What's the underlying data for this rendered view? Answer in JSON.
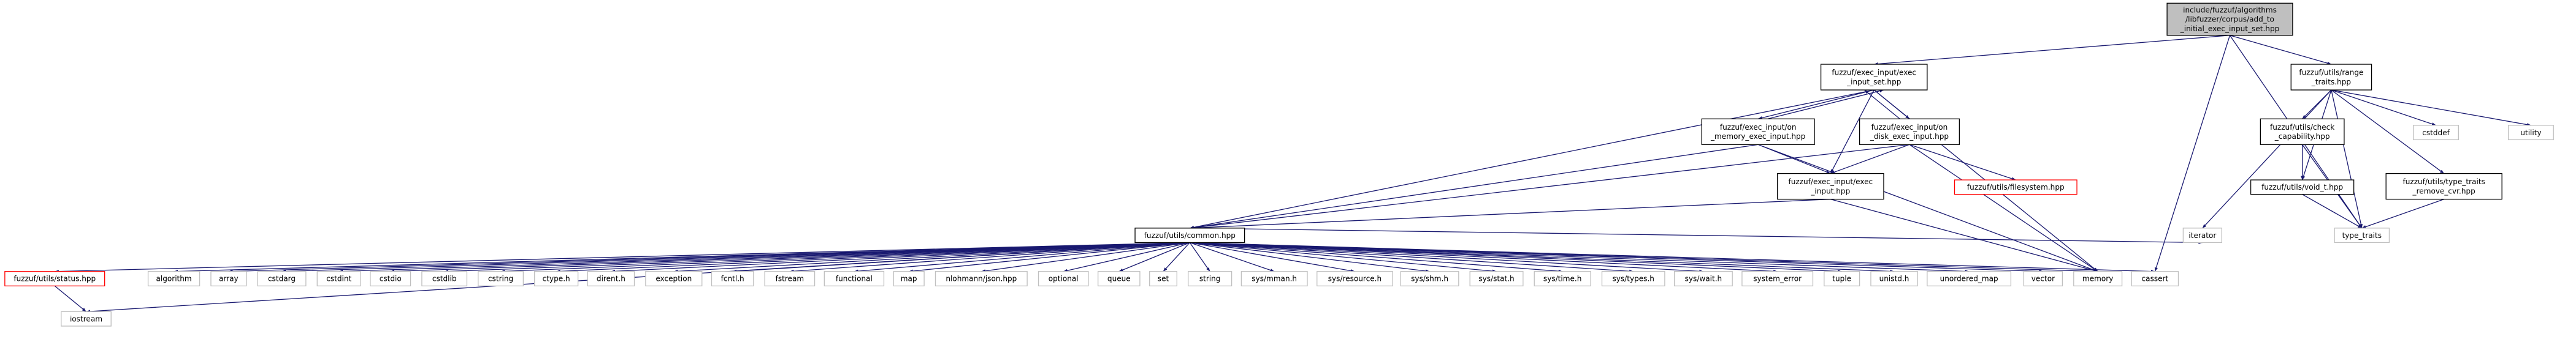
{
  "nodes": [
    {
      "lines": [
        "include/fuzzuf/algorithms",
        "/libfuzzer/corpus/add_to",
        "_initial_exec_input_set.hpp"
      ]
    },
    {
      "lines": [
        "fuzzuf/exec_input/exec",
        "_input_set.hpp"
      ]
    },
    {
      "lines": [
        "fuzzuf/utils/range",
        "_traits.hpp"
      ]
    },
    {
      "lines": [
        "fuzzuf/exec_input/on",
        "_memory_exec_input.hpp"
      ]
    },
    {
      "lines": [
        "fuzzuf/exec_input/on",
        "_disk_exec_input.hpp"
      ]
    },
    {
      "lines": [
        "fuzzuf/utils/check",
        "_capability.hpp"
      ]
    },
    {
      "lines": [
        "cstddef"
      ]
    },
    {
      "lines": [
        "utility"
      ]
    },
    {
      "lines": [
        "fuzzuf/exec_input/exec",
        "_input.hpp"
      ]
    },
    {
      "lines": [
        "fuzzuf/utils/filesystem.hpp"
      ]
    },
    {
      "lines": [
        "fuzzuf/utils/void_t.hpp"
      ]
    },
    {
      "lines": [
        "fuzzuf/utils/type_traits",
        "_remove_cvr.hpp"
      ]
    },
    {
      "lines": [
        "fuzzuf/utils/common.hpp"
      ]
    },
    {
      "lines": [
        "iterator"
      ]
    },
    {
      "lines": [
        "type_traits"
      ]
    },
    {
      "lines": [
        "fuzzuf/utils/status.hpp"
      ]
    },
    {
      "lines": [
        "algorithm"
      ]
    },
    {
      "lines": [
        "array"
      ]
    },
    {
      "lines": [
        "cstdarg"
      ]
    },
    {
      "lines": [
        "cstdint"
      ]
    },
    {
      "lines": [
        "cstdio"
      ]
    },
    {
      "lines": [
        "cstdlib"
      ]
    },
    {
      "lines": [
        "cstring"
      ]
    },
    {
      "lines": [
        "ctype.h"
      ]
    },
    {
      "lines": [
        "dirent.h"
      ]
    },
    {
      "lines": [
        "exception"
      ]
    },
    {
      "lines": [
        "fcntl.h"
      ]
    },
    {
      "lines": [
        "fstream"
      ]
    },
    {
      "lines": [
        "functional"
      ]
    },
    {
      "lines": [
        "map"
      ]
    },
    {
      "lines": [
        "nlohmann/json.hpp"
      ]
    },
    {
      "lines": [
        "optional"
      ]
    },
    {
      "lines": [
        "queue"
      ]
    },
    {
      "lines": [
        "set"
      ]
    },
    {
      "lines": [
        "string"
      ]
    },
    {
      "lines": [
        "sys/mman.h"
      ]
    },
    {
      "lines": [
        "sys/resource.h"
      ]
    },
    {
      "lines": [
        "sys/shm.h"
      ]
    },
    {
      "lines": [
        "sys/stat.h"
      ]
    },
    {
      "lines": [
        "sys/time.h"
      ]
    },
    {
      "lines": [
        "sys/types.h"
      ]
    },
    {
      "lines": [
        "sys/wait.h"
      ]
    },
    {
      "lines": [
        "system_error"
      ]
    },
    {
      "lines": [
        "tuple"
      ]
    },
    {
      "lines": [
        "unistd.h"
      ]
    },
    {
      "lines": [
        "unordered_map"
      ]
    },
    {
      "lines": [
        "vector"
      ]
    },
    {
      "lines": [
        "memory"
      ]
    },
    {
      "lines": [
        "cassert"
      ]
    },
    {
      "lines": [
        "iostream"
      ]
    }
  ]
}
